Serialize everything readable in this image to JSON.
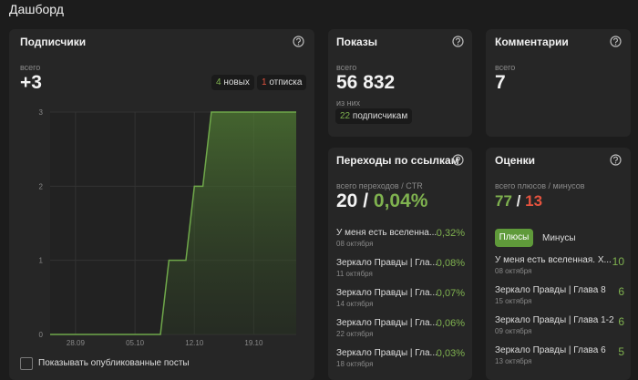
{
  "header": {
    "title": "Дашборд"
  },
  "subscribers": {
    "title": "Подписчики",
    "total_label": "всего",
    "total": "+3",
    "new_count": "4",
    "new_label": "новых",
    "unsub_count": "1",
    "unsub_label": "отписка",
    "checkbox_label": "Показывать опубликованные посты",
    "chart": {
      "type": "line",
      "categories": [
        null,
        null,
        null,
        "28.09",
        null,
        null,
        null,
        null,
        null,
        null,
        "05.10",
        null,
        null,
        null,
        null,
        null,
        null,
        "12.10",
        null,
        null,
        null,
        null,
        null,
        null,
        "19.10",
        null,
        null,
        null,
        null,
        null
      ],
      "values": [
        0,
        0,
        0,
        0,
        0,
        0,
        0,
        0,
        0,
        0,
        0,
        0,
        0,
        0,
        1,
        1,
        1,
        2,
        2,
        3,
        3,
        3,
        3,
        3,
        3,
        3,
        3,
        3,
        3,
        3
      ],
      "color": "#6fa84a",
      "ylim": [
        0,
        3
      ],
      "yticks": [
        0,
        1,
        2,
        3
      ],
      "grid": true
    }
  },
  "impressions": {
    "title": "Показы",
    "total_label": "всего",
    "total": "56 832",
    "of_label": "из них",
    "subs_count": "22",
    "subs_label": "подписчикам"
  },
  "comments": {
    "title": "Комментарии",
    "total_label": "всего",
    "total": "7"
  },
  "clicks": {
    "title": "Переходы по ссылкам",
    "total_label": "всего переходов / CTR",
    "total": "20",
    "separator": "/",
    "ctr": "0,04%",
    "rows": [
      {
        "title": "У меня есть вселенна...",
        "date": "08 октября",
        "ctr": "0,32%"
      },
      {
        "title": "Зеркало Правды | Гла...",
        "date": "11 октября",
        "ctr": "0,08%"
      },
      {
        "title": "Зеркало Правды | Гла...",
        "date": "14 октября",
        "ctr": "0,07%"
      },
      {
        "title": "Зеркало Правды | Гла...",
        "date": "22 октября",
        "ctr": "0,06%"
      },
      {
        "title": "Зеркало Правды | Гла...",
        "date": "18 октября",
        "ctr": "0,03%"
      }
    ]
  },
  "ratings": {
    "title": "Оценки",
    "total_label": "всего плюсов / минусов",
    "plus": "77",
    "separator": "/",
    "minus": "13",
    "tab_plus": "Плюсы",
    "tab_minus": "Минусы",
    "rows": [
      {
        "title": "У меня есть вселенная. Х...",
        "date": "08 октября",
        "count": "10"
      },
      {
        "title": "Зеркало Правды | Глава 8",
        "date": "15 октября",
        "count": "6"
      },
      {
        "title": "Зеркало Правды | Глава 1-2",
        "date": "09 октября",
        "count": "6"
      },
      {
        "title": "Зеркало Правды | Глава 6",
        "date": "13 октября",
        "count": "5"
      }
    ]
  }
}
